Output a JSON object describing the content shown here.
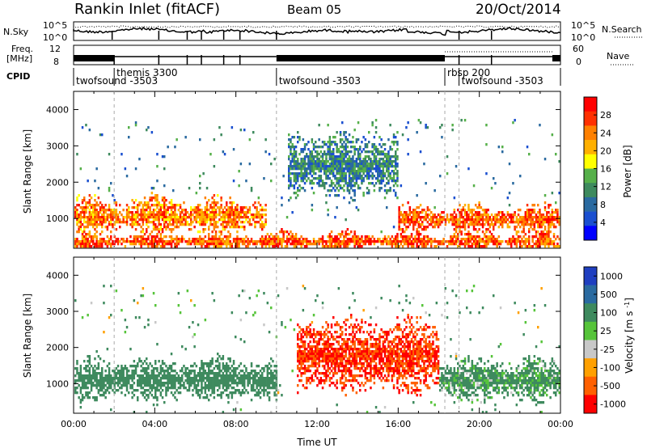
{
  "header": {
    "title": "Rankin Inlet (fitACF)",
    "beam": "Beam 05",
    "date": "20/Oct/2014"
  },
  "noise_panel": {
    "left_label": "N.Sky",
    "left_ticks": [
      "10^5",
      "10^0"
    ],
    "right_ticks": [
      "10^5",
      "10^0"
    ],
    "right_label": "N.Search",
    "right_label_style": "dotted"
  },
  "freq_panel": {
    "left_label_1": "Freq.",
    "left_label_2": "[MHz]",
    "left_ticks": [
      "12",
      "8"
    ],
    "right_ticks": [
      "60",
      "0"
    ],
    "right_label": "Nave",
    "right_label_style": "dotted"
  },
  "cpid": {
    "label": "CPID",
    "segments": [
      {
        "name": "twofsound -3503",
        "start": 0,
        "end": 2.0
      },
      {
        "name": "themis 3300",
        "start": 2.0,
        "end": 10.0
      },
      {
        "name": "twofsound -3503",
        "start": 10.0,
        "end": 18.3
      },
      {
        "name": "rbsp 200",
        "start": 18.3,
        "end": 19.0
      },
      {
        "name": "twofsound -3503",
        "start": 19.0,
        "end": 24.0
      }
    ]
  },
  "chart_data": [
    {
      "type": "heatmap",
      "quantity": "Power",
      "ylabel": "Slant Range [km]",
      "xlabel": "",
      "ylim": [
        180,
        4500
      ],
      "xlim": [
        0,
        24
      ],
      "yticks": [
        1000,
        2000,
        3000,
        4000
      ],
      "colorbar": {
        "label": "Power [dB]",
        "ticks": [
          "28",
          "24",
          "20",
          "16",
          "12",
          "8",
          "4"
        ],
        "range": [
          0,
          32
        ],
        "colors": [
          "#0000ff",
          "#1a4fd0",
          "#2a6aa0",
          "#3e8a5e",
          "#56b04a",
          "#ffff00",
          "#ffb000",
          "#ff8000",
          "#ff3000",
          "#ff0000"
        ]
      },
      "features": [
        {
          "label": "E-region band",
          "x_range": [
            0,
            24
          ],
          "y_range": [
            200,
            600
          ],
          "level": 26
        },
        {
          "label": "F-region main band",
          "x_range": [
            0,
            9.5
          ],
          "y_range": [
            700,
            1500
          ],
          "level": 24
        },
        {
          "label": "F-region main band",
          "x_range": [
            16,
            24
          ],
          "y_range": [
            700,
            1300
          ],
          "level": 26
        },
        {
          "label": "Upper echoes",
          "x_range": [
            10.5,
            16
          ],
          "y_range": [
            1800,
            3200
          ],
          "level": 10
        }
      ]
    },
    {
      "type": "heatmap",
      "quantity": "Velocity",
      "ylabel": "Slant Range [km]",
      "xlabel": "Time UT",
      "ylim": [
        180,
        4500
      ],
      "xlim": [
        0,
        24
      ],
      "yticks": [
        1000,
        2000,
        3000,
        4000
      ],
      "xticks": [
        "00:00",
        "04:00",
        "08:00",
        "12:00",
        "16:00",
        "20:00",
        "00:00"
      ],
      "colorbar": {
        "label": "Velocity [m s^-1]",
        "ticks": [
          "1000",
          "500",
          "100",
          "25",
          "-25",
          "-100",
          "-500",
          "-1000"
        ],
        "colors": [
          "#1f3fc0",
          "#2a6aa0",
          "#3e8a5e",
          "#56c43a",
          "#c8c8c8",
          "#ffa000",
          "#ff6000",
          "#ff0000"
        ]
      },
      "features": [
        {
          "label": "Positive velocity band",
          "x_range": [
            0,
            10
          ],
          "y_range": [
            700,
            1600
          ],
          "level": 300
        },
        {
          "label": "Negative velocity band",
          "x_range": [
            11,
            18
          ],
          "y_range": [
            1000,
            2600
          ],
          "level": -500
        },
        {
          "label": "Positive velocity band",
          "x_range": [
            18,
            24
          ],
          "y_range": [
            700,
            1600
          ],
          "level": 200
        }
      ]
    }
  ]
}
